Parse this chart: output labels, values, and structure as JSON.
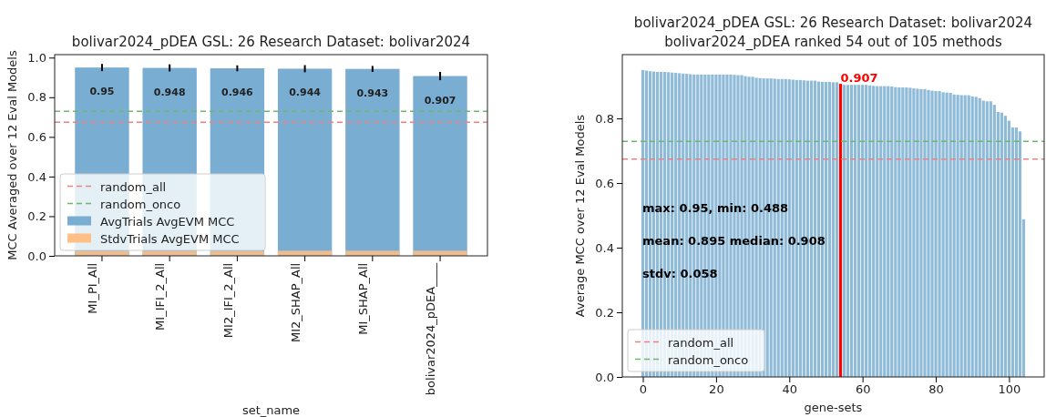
{
  "chart_data": [
    {
      "type": "bar",
      "title": "bolivar2024_pDEA GSL: 26 Research Dataset: bolivar2024",
      "xlabel": "set_name",
      "ylabel": "MCC Averaged over 12 Eval Models",
      "categories": [
        "MI_PI_All",
        "MI_IFI_2_All",
        "MI2_IFI_2_All",
        "MI2_SHAP_All",
        "MI_SHAP_All",
        "bolivar2024_pDEA____"
      ],
      "series": [
        {
          "name": "AvgTrials AvgEVM MCC",
          "color": "#79add2",
          "values": [
            0.95,
            0.948,
            0.946,
            0.944,
            0.943,
            0.907
          ],
          "errors": [
            0.018,
            0.018,
            0.015,
            0.018,
            0.015,
            0.021
          ],
          "value_labels": [
            "0.95",
            "0.948",
            "0.946",
            "0.944",
            "0.943",
            "0.907"
          ]
        },
        {
          "name": "StdvTrials AvgEVM MCC",
          "color": "#ffbf86",
          "values": [
            0.025,
            0.025,
            0.024,
            0.026,
            0.026,
            0.026
          ]
        }
      ],
      "ylim": [
        0,
        1.015
      ],
      "yticks": [
        {
          "value": 0,
          "label": "0.0"
        },
        {
          "value": 0.2,
          "label": "0.2"
        },
        {
          "value": 0.4,
          "label": "0.4"
        },
        {
          "value": 0.6,
          "label": "0.6"
        },
        {
          "value": 0.8,
          "label": "0.8"
        },
        {
          "value": 1,
          "label": "1.0"
        }
      ],
      "ref_lines": [
        {
          "axis": "y",
          "value": 0.674,
          "label": "random_all",
          "color": "#f08080",
          "line_style": "dashed"
        },
        {
          "axis": "y",
          "value": 0.729,
          "label": "random_onco",
          "color": "#6cb86c",
          "line_style": "dashed"
        }
      ],
      "legend": "bottom left"
    },
    {
      "type": "bar",
      "title": "bolivar2024_pDEA GSL: 26 Research Dataset: bolivar2024",
      "subtitle": "bolivar2024_pDEA ranked 54 out of 105 methods",
      "xlabel": "gene-sets",
      "ylabel": "Average MCC over 12 Eval Models",
      "x": [
        0,
        1,
        2,
        3,
        4,
        5,
        6,
        7,
        8,
        9,
        10,
        11,
        12,
        13,
        14,
        15,
        16,
        17,
        18,
        19,
        20,
        21,
        22,
        23,
        24,
        25,
        26,
        27,
        28,
        29,
        30,
        31,
        32,
        33,
        34,
        35,
        36,
        37,
        38,
        39,
        40,
        41,
        42,
        43,
        44,
        45,
        46,
        47,
        48,
        49,
        50,
        51,
        52,
        53,
        54,
        55,
        56,
        57,
        58,
        59,
        60,
        61,
        62,
        63,
        64,
        65,
        66,
        67,
        68,
        69,
        70,
        71,
        72,
        73,
        74,
        75,
        76,
        77,
        78,
        79,
        80,
        81,
        82,
        83,
        84,
        85,
        86,
        87,
        88,
        89,
        90,
        91,
        92,
        93,
        94,
        95,
        96,
        97,
        98,
        99,
        100,
        101,
        102,
        103,
        104
      ],
      "values": [
        0.95,
        0.948,
        0.946,
        0.945,
        0.944,
        0.944,
        0.944,
        0.943,
        0.942,
        0.941,
        0.94,
        0.939,
        0.938,
        0.937,
        0.936,
        0.936,
        0.936,
        0.936,
        0.936,
        0.936,
        0.936,
        0.936,
        0.936,
        0.936,
        0.936,
        0.935,
        0.934,
        0.934,
        0.931,
        0.929,
        0.929,
        0.926,
        0.925,
        0.924,
        0.924,
        0.924,
        0.923,
        0.922,
        0.922,
        0.922,
        0.921,
        0.92,
        0.919,
        0.919,
        0.918,
        0.917,
        0.917,
        0.917,
        0.914,
        0.913,
        0.913,
        0.913,
        0.912,
        0.912,
        0.907,
        0.904,
        0.904,
        0.904,
        0.904,
        0.904,
        0.904,
        0.904,
        0.902,
        0.901,
        0.9,
        0.9,
        0.9,
        0.9,
        0.899,
        0.897,
        0.896,
        0.896,
        0.896,
        0.895,
        0.893,
        0.892,
        0.891,
        0.891,
        0.888,
        0.886,
        0.885,
        0.885,
        0.881,
        0.88,
        0.879,
        0.874,
        0.873,
        0.872,
        0.872,
        0.872,
        0.868,
        0.867,
        0.863,
        0.855,
        0.853,
        0.853,
        0.842,
        0.82,
        0.818,
        0.808,
        0.793,
        0.772,
        0.772,
        0.76,
        0.488
      ],
      "colors": [
        "#8fbbd9",
        "#8fbbd9",
        "#8fbbd9",
        "#8fbbd9",
        "#8fbbd9",
        "#8fbbd9",
        "#8fbbd9",
        "#8fbbd9",
        "#8fbbd9",
        "#8fbbd9",
        "#8fbbd9",
        "#8fbbd9",
        "#8fbbd9",
        "#8fbbd9",
        "#8fbbd9",
        "#8fbbd9",
        "#8fbbd9",
        "#8fbbd9",
        "#8fbbd9",
        "#8fbbd9",
        "#8fbbd9",
        "#8fbbd9",
        "#8fbbd9",
        "#8fbbd9",
        "#8fbbd9",
        "#8fbbd9",
        "#8fbbd9",
        "#8fbbd9",
        "#8fbbd9",
        "#8fbbd9",
        "#8fbbd9",
        "#8fbbd9",
        "#8fbbd9",
        "#8fbbd9",
        "#8fbbd9",
        "#8fbbd9",
        "#8fbbd9",
        "#8fbbd9",
        "#8fbbd9",
        "#8fbbd9",
        "#8fbbd9",
        "#8fbbd9",
        "#8fbbd9",
        "#8fbbd9",
        "#8fbbd9",
        "#8fbbd9",
        "#8fbbd9",
        "#8fbbd9",
        "#8fbbd9",
        "#8fbbd9",
        "#8fbbd9",
        "#8fbbd9",
        "#8fbbd9",
        "#8fbbd9",
        "#ff0000",
        "#8fbbd9",
        "#8fbbd9",
        "#8fbbd9",
        "#8fbbd9",
        "#8fbbd9",
        "#8fbbd9",
        "#8fbbd9",
        "#8fbbd9",
        "#8fbbd9",
        "#8fbbd9",
        "#8fbbd9",
        "#8fbbd9",
        "#8fbbd9",
        "#8fbbd9",
        "#8fbbd9",
        "#8fbbd9",
        "#8fbbd9",
        "#8fbbd9",
        "#8fbbd9",
        "#8fbbd9",
        "#8fbbd9",
        "#8fbbd9",
        "#8fbbd9",
        "#8fbbd9",
        "#8fbbd9",
        "#8fbbd9",
        "#8fbbd9",
        "#8fbbd9",
        "#8fbbd9",
        "#8fbbd9",
        "#8fbbd9",
        "#8fbbd9",
        "#8fbbd9",
        "#8fbbd9",
        "#8fbbd9",
        "#8fbbd9",
        "#8fbbd9",
        "#8fbbd9",
        "#8fbbd9",
        "#8fbbd9",
        "#8fbbd9",
        "#8fbbd9",
        "#8fbbd9",
        "#8fbbd9",
        "#8fbbd9",
        "#8fbbd9",
        "#8fbbd9",
        "#8fbbd9",
        "#8fbbd9",
        "#8fbbd9"
      ],
      "xlim": [
        -5.6,
        109.6
      ],
      "xticks": [
        0,
        20,
        40,
        60,
        80,
        100
      ],
      "ylim": [
        0,
        0.9975
      ],
      "yticks": [
        {
          "value": 0,
          "label": "0.0"
        },
        {
          "value": 0.2,
          "label": "0.2"
        },
        {
          "value": 0.4,
          "label": "0.4"
        },
        {
          "value": 0.6,
          "label": "0.6"
        },
        {
          "value": 0.8,
          "label": "0.8"
        }
      ],
      "ref_lines": [
        {
          "axis": "y",
          "value": 0.674,
          "label": "random_all",
          "color": "#f08080",
          "line_style": "dashed"
        },
        {
          "axis": "y",
          "value": 0.729,
          "label": "random_onco",
          "color": "#6cb86c",
          "line_style": "dashed"
        }
      ],
      "annotations": [
        {
          "text": "0.907",
          "x": 54,
          "y": 0.907
        },
        "max: 0.95, min: 0.488",
        "mean: 0.895 median: 0.908",
        "stdv: 0.058"
      ],
      "legend": "bottom left"
    }
  ]
}
